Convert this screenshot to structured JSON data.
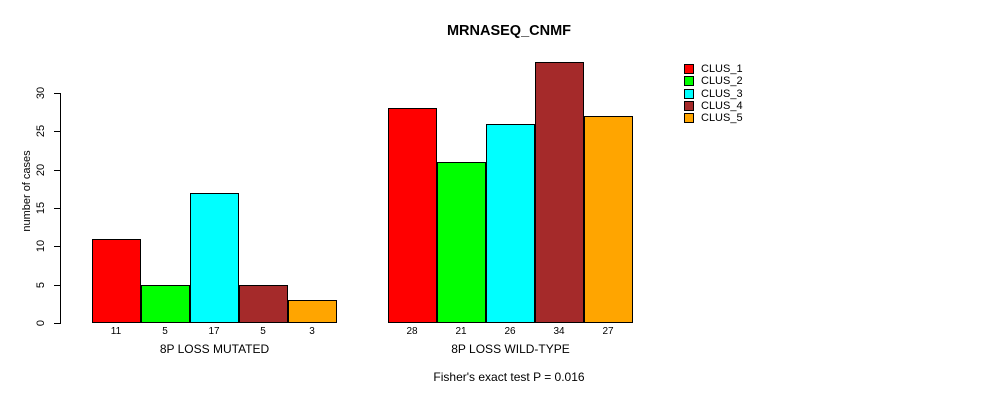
{
  "chart_data": {
    "type": "bar",
    "title": "MRNASEQ_CNMF",
    "ylabel": "number of cases",
    "xlabel": "",
    "yticks": [
      0,
      5,
      10,
      15,
      20,
      25,
      30
    ],
    "ylim": [
      0,
      34
    ],
    "grid": false,
    "legend_position": "right-inside",
    "categories": [
      "8P LOSS MUTATED",
      "8P LOSS WILD-TYPE"
    ],
    "series": [
      {
        "name": "CLUS_1",
        "color": "#FF0000",
        "values": [
          11,
          28
        ]
      },
      {
        "name": "CLUS_2",
        "color": "#00FF00",
        "values": [
          5,
          21
        ]
      },
      {
        "name": "CLUS_3",
        "color": "#00FFFF",
        "values": [
          17,
          26
        ]
      },
      {
        "name": "CLUS_4",
        "color": "#A52A2A",
        "values": [
          5,
          34
        ]
      },
      {
        "name": "CLUS_5",
        "color": "#FFA500",
        "values": [
          3,
          27
        ]
      }
    ],
    "bar_value_labels": {
      "8P LOSS MUTATED": [
        11,
        5,
        17,
        5,
        3
      ],
      "8P LOSS WILD-TYPE": [
        28,
        21,
        26,
        34,
        27
      ]
    },
    "annotation": "Fisher's exact test P = 0.016",
    "bar_border_color": "#000000",
    "text_color": "#000000",
    "background_color": "#FFFFFF"
  }
}
